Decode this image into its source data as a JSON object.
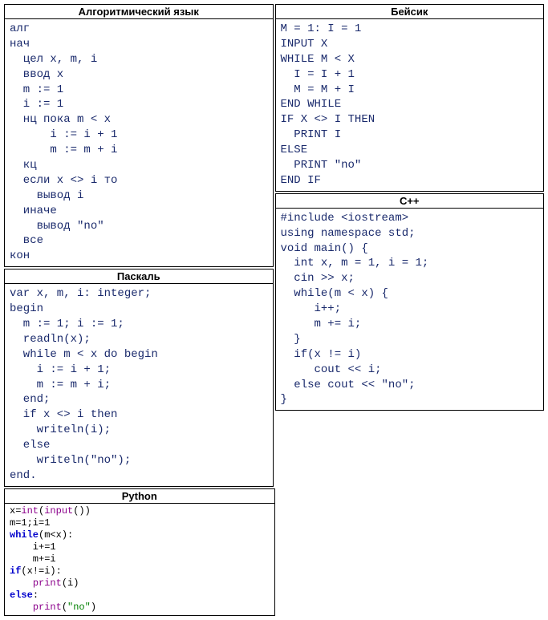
{
  "panels": {
    "algo": {
      "title": "Алгоритмический язык",
      "lines": [
        "алг",
        "нач",
        "  цел x, m, i",
        "  ввод x",
        "  m := 1",
        "  i := 1",
        "  нц пока m < x",
        "      i := i + 1",
        "      m := m + i",
        "  кц",
        "  если x <> i то",
        "    вывод i",
        "  иначе",
        "    вывод \"no\"",
        "  все",
        "кон"
      ]
    },
    "basic": {
      "title": "Бейсик",
      "lines": [
        "M = 1: I = 1",
        "INPUT X",
        "WHILE M < X",
        "  I = I + 1",
        "  M = M + I",
        "END WHILE",
        "IF X <> I THEN",
        "  PRINT I",
        "ELSE",
        "  PRINT \"no\"",
        "END IF"
      ]
    },
    "pascal": {
      "title": "Паскаль",
      "lines": [
        "var x, m, i: integer;",
        "begin",
        "  m := 1; i := 1;",
        "  readln(x);",
        "  while m < x do begin",
        "    i := i + 1;",
        "    m := m + i;",
        "  end;",
        "  if x <> i then",
        "    writeln(i);",
        "  else",
        "    writeln(\"no\");",
        "end."
      ]
    },
    "cpp": {
      "title": "С++",
      "lines": [
        "#include <iostream>",
        "using namespace std;",
        "void main() {",
        "  int x, m = 1, i = 1;",
        "  cin >> x;",
        "  while(m < x) {",
        "     i++;",
        "     m += i;",
        "  }",
        "  if(x != i)",
        "     cout << i;",
        "  else cout << \"no\";",
        "}"
      ]
    },
    "python": {
      "title": "Python",
      "tokens": [
        [
          {
            "t": "x=",
            "c": "py-plain"
          },
          {
            "t": "int",
            "c": "py-fn"
          },
          {
            "t": "(",
            "c": "py-plain"
          },
          {
            "t": "input",
            "c": "py-fn"
          },
          {
            "t": "())",
            "c": "py-plain"
          }
        ],
        [
          {
            "t": "m=",
            "c": "py-plain"
          },
          {
            "t": "1",
            "c": "py-num"
          },
          {
            "t": ";i=",
            "c": "py-plain"
          },
          {
            "t": "1",
            "c": "py-num"
          }
        ],
        [
          {
            "t": "while",
            "c": "py-kw"
          },
          {
            "t": "(m<x):",
            "c": "py-plain"
          }
        ],
        [
          {
            "t": "    i+=",
            "c": "py-plain"
          },
          {
            "t": "1",
            "c": "py-num"
          }
        ],
        [
          {
            "t": "    m+=i",
            "c": "py-plain"
          }
        ],
        [
          {
            "t": "if",
            "c": "py-kw"
          },
          {
            "t": "(x!=i):",
            "c": "py-plain"
          }
        ],
        [
          {
            "t": "    ",
            "c": "py-plain"
          },
          {
            "t": "print",
            "c": "py-fn"
          },
          {
            "t": "(i)",
            "c": "py-plain"
          }
        ],
        [
          {
            "t": "else",
            "c": "py-kw"
          },
          {
            "t": ":",
            "c": "py-plain"
          }
        ],
        [
          {
            "t": "    ",
            "c": "py-plain"
          },
          {
            "t": "print",
            "c": "py-fn"
          },
          {
            "t": "(",
            "c": "py-plain"
          },
          {
            "t": "\"no\"",
            "c": "py-str"
          },
          {
            "t": ")",
            "c": "py-plain"
          }
        ]
      ]
    }
  },
  "colors": {
    "code_text": "#1a2a6c",
    "border": "#000000",
    "background": "#ffffff"
  }
}
